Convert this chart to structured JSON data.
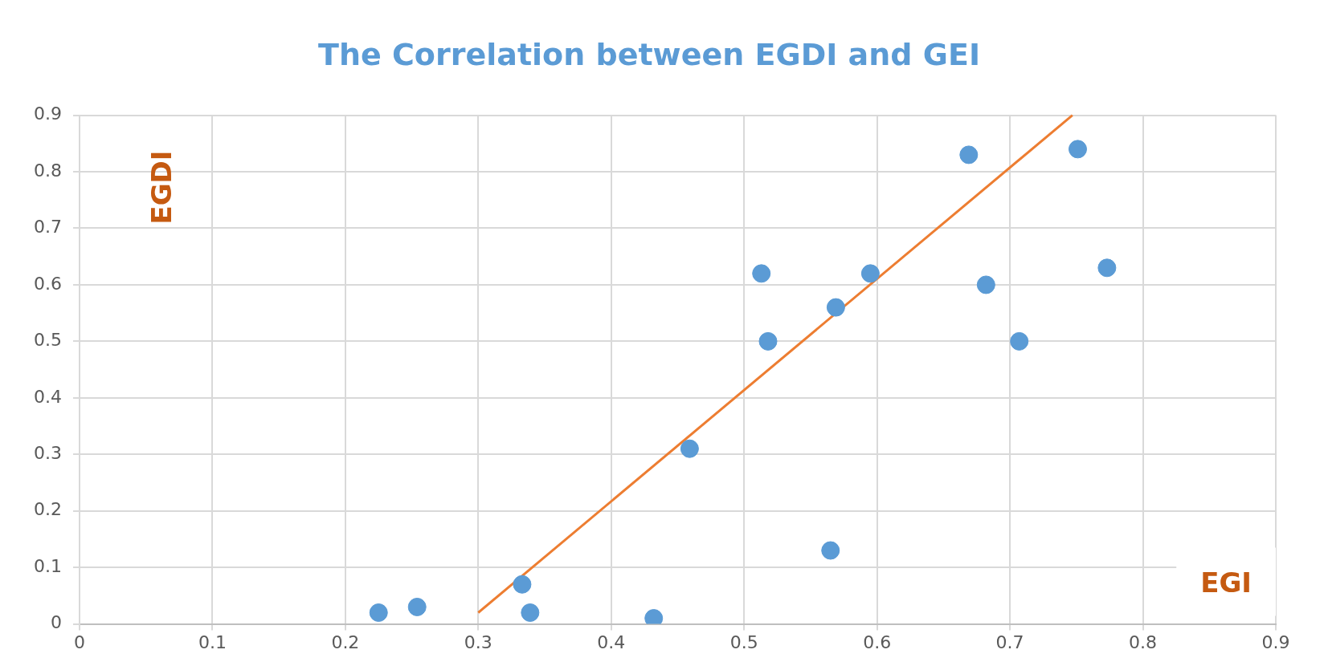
{
  "chart_data": {
    "type": "scatter",
    "title": "The Correlation between EGDI and GEI",
    "xlabel": "EGI",
    "ylabel": "EGDI",
    "xlim": [
      0,
      0.9
    ],
    "xticks": [
      0,
      0.1,
      0.2,
      0.3,
      0.4,
      0.5,
      0.6,
      0.7,
      0.8,
      0.9
    ],
    "ylim": [
      0,
      0.9
    ],
    "yticks": [
      0,
      0.1,
      0.2,
      0.3,
      0.4,
      0.5,
      0.6,
      0.7,
      0.8,
      0.9
    ],
    "grid": true,
    "legend": false,
    "series": [
      {
        "type": "scatter",
        "marker": "circle",
        "color": "#5b9bd5",
        "x": [
          0.225,
          0.254,
          0.333,
          0.339,
          0.432,
          0.459,
          0.513,
          0.518,
          0.565,
          0.569,
          0.595,
          0.669,
          0.682,
          0.707,
          0.751,
          0.773
        ],
        "values": [
          0.02,
          0.03,
          0.07,
          0.02,
          0.01,
          0.31,
          0.62,
          0.5,
          0.13,
          0.56,
          0.62,
          0.83,
          0.6,
          0.5,
          0.84,
          0.63
        ]
      },
      {
        "type": "line",
        "color": "#ed7d31",
        "x": [
          0.3,
          0.747
        ],
        "values": [
          0.02,
          0.9
        ]
      }
    ]
  }
}
